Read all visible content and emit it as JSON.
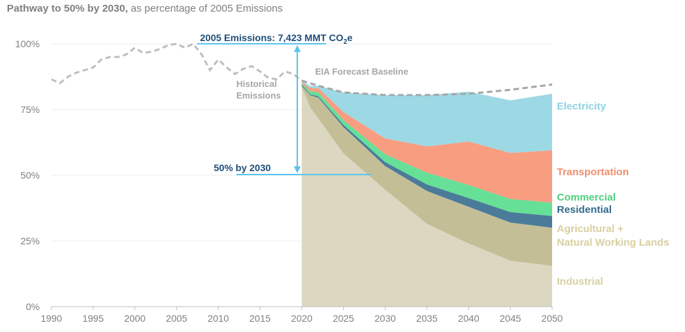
{
  "title": {
    "bold": "Pathway to 50%  by 2030,",
    "rest": " as percentage of 2005 Emissions"
  },
  "chart_data": {
    "type": "area",
    "title": "Pathway to 50%  by 2030, as percentage of 2005 Emissions",
    "xlabel": "",
    "ylabel": "",
    "xlim": [
      1990,
      2050
    ],
    "ylim": [
      0,
      100
    ],
    "x_ticks": [
      "1990",
      "1995",
      "2000",
      "2005",
      "2010",
      "2015",
      "2020",
      "2025",
      "2030",
      "2035",
      "2040",
      "2045",
      "2050"
    ],
    "y_ticks": [
      "0%",
      "25%",
      "50%",
      "75%",
      "100%"
    ],
    "grid": "horizontal",
    "historical_emissions": {
      "name": "Historical Emissions",
      "x": [
        1990,
        1991,
        1992,
        1993,
        1994,
        1995,
        1996,
        1997,
        1998,
        1999,
        2000,
        2001,
        2002,
        2003,
        2004,
        2005,
        2006,
        2007,
        2008,
        2009,
        2010,
        2011,
        2012,
        2013,
        2014,
        2015,
        2016,
        2017,
        2018,
        2019,
        2020
      ],
      "y": [
        86.5,
        85.0,
        87.5,
        89.0,
        90.0,
        91.0,
        94.0,
        95.0,
        95.0,
        96.0,
        98.5,
        96.5,
        97.0,
        98.0,
        99.5,
        100.0,
        98.5,
        100.0,
        96.0,
        90.0,
        94.0,
        91.0,
        88.5,
        90.5,
        91.5,
        89.5,
        87.0,
        86.5,
        89.5,
        88.5,
        86.0
      ]
    },
    "forecast_baseline": {
      "name": "EIA Forecast Baseline",
      "x": [
        2020,
        2022,
        2025,
        2030,
        2035,
        2040,
        2045,
        2050
      ],
      "y": [
        86.0,
        84.0,
        81.5,
        80.5,
        80.5,
        81.0,
        82.5,
        84.5
      ]
    },
    "stack_x": [
      2020,
      2021,
      2022,
      2025,
      2030,
      2035,
      2040,
      2045,
      2050
    ],
    "series": [
      {
        "name": "Electricity",
        "color": "#9dd9e4",
        "values": [
          0.5,
          0.8,
          0.9,
          7.5,
          16.5,
          19.5,
          19.0,
          20.0,
          21.5
        ]
      },
      {
        "name": "Transportation",
        "color": "#f99d80",
        "values": [
          0.5,
          1.2,
          1.6,
          3.0,
          6.0,
          10.0,
          16.5,
          17.5,
          20.0
        ]
      },
      {
        "name": "Commercial",
        "color": "#66df97",
        "values": [
          0.5,
          1.2,
          1.5,
          1.8,
          3.0,
          4.5,
          5.0,
          5.0,
          5.0
        ]
      },
      {
        "name": "Residential",
        "color": "#4a7c99",
        "values": [
          0.5,
          0.4,
          0.5,
          0.9,
          1.5,
          2.5,
          3.3,
          4.0,
          4.5
        ]
      },
      {
        "name": "Agricultural + Natural Working Lands",
        "color": "#c4be97",
        "values": [
          0.5,
          4.5,
          8.0,
          10.0,
          9.0,
          12.5,
          14.0,
          14.5,
          14.5
        ]
      },
      {
        "name": "Industrial",
        "color": "#dcd7c0",
        "values": [
          83.5,
          75.9,
          71.5,
          58.3,
          44.5,
          31.5,
          24.0,
          17.5,
          15.5
        ]
      }
    ],
    "annotations": {
      "emissions_2005_prefix": "2005 Emissions: 7,423 MMT CO",
      "emissions_2005_sub": "2",
      "emissions_2005_suffix": "e",
      "target": "50%  by 2030",
      "historical_line1": "Historical",
      "historical_line2": "Emissions",
      "baseline": "EIA Forecast Baseline"
    },
    "segment_labels": {
      "electricity": "Electricity",
      "transportation": "Transportation",
      "commercial": "Commercial",
      "residential": "Residential",
      "agri_line1": "Agricultural +",
      "agri_line2": "Natural Working Lands",
      "industrial": "Industrial"
    },
    "colors": {
      "axis_text": "#7f7f7f",
      "annotation_text": "#1f4e79",
      "annotation_line": "#5bc4ec",
      "history_line": "#bfbfbf",
      "baseline_line": "#a6a6a6",
      "gray_label": "#a6a6a6",
      "label_electricity": "#8fd3e4",
      "label_transportation": "#f28e6f",
      "label_commercial": "#4fd07e",
      "label_residential": "#336a8c",
      "label_agri": "#d8cfa0",
      "label_industrial": "#d8cfa0"
    }
  }
}
